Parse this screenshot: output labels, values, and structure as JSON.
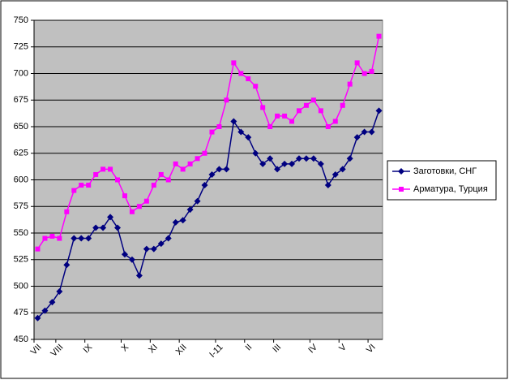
{
  "chart_data": {
    "type": "line",
    "categories": [
      "VII",
      null,
      null,
      "VIII",
      null,
      null,
      null,
      "IX",
      null,
      null,
      null,
      null,
      "X",
      null,
      null,
      null,
      "XI",
      null,
      null,
      null,
      "XII",
      null,
      null,
      null,
      null,
      "I-11",
      null,
      null,
      null,
      "II",
      null,
      null,
      null,
      "III",
      null,
      null,
      null,
      null,
      "IV",
      null,
      null,
      null,
      "V",
      null,
      null,
      null,
      "VI",
      null
    ],
    "series": [
      {
        "name": "Заготовки, СНГ",
        "color": "#000080",
        "marker": "diamond",
        "values": [
          470,
          477,
          485,
          495,
          520,
          545,
          545,
          545,
          555,
          555,
          565,
          555,
          530,
          525,
          510,
          535,
          535,
          540,
          545,
          560,
          562,
          572,
          580,
          595,
          605,
          610,
          610,
          655,
          645,
          640,
          625,
          615,
          620,
          610,
          615,
          615,
          620,
          620,
          620,
          615,
          595,
          605,
          610,
          620,
          640,
          645,
          645,
          665
        ]
      },
      {
        "name": "Арматура, Турция",
        "color": "#ff00ff",
        "marker": "square",
        "values": [
          535,
          545,
          547,
          545,
          570,
          590,
          595,
          595,
          605,
          610,
          610,
          600,
          585,
          570,
          575,
          580,
          595,
          605,
          600,
          615,
          610,
          615,
          620,
          625,
          645,
          650,
          675,
          710,
          700,
          695,
          688,
          668,
          650,
          660,
          660,
          655,
          665,
          670,
          675,
          665,
          650,
          655,
          670,
          690,
          710,
          700,
          702,
          735
        ]
      }
    ],
    "ylim": [
      450,
      750
    ],
    "yticks": [
      450,
      475,
      500,
      525,
      550,
      575,
      600,
      625,
      650,
      675,
      700,
      725,
      750
    ],
    "grid": true,
    "legend": "right",
    "plot_background": "#c0c0c0"
  }
}
